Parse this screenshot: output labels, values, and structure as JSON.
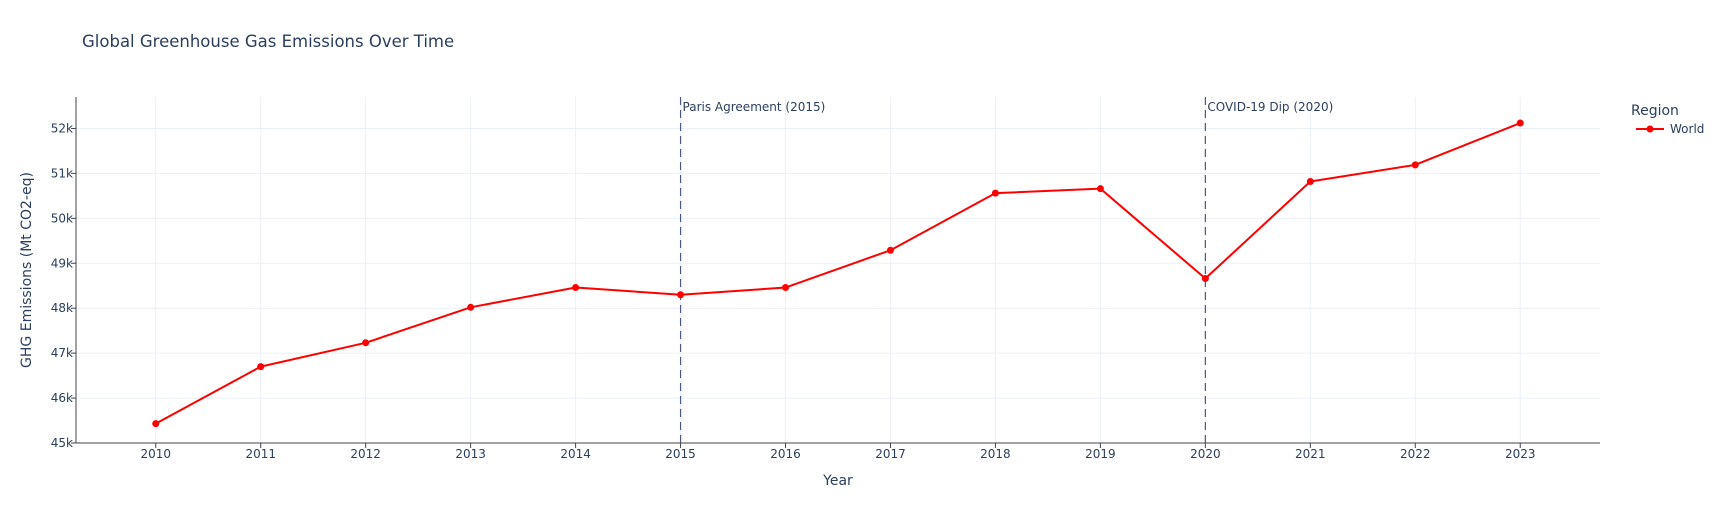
{
  "chart_data": {
    "type": "line",
    "title": "Global Greenhouse Gas Emissions Over Time",
    "xlabel": "Year",
    "ylabel": "GHG Emissions (Mt CO2-eq)",
    "x": [
      2010,
      2011,
      2012,
      2013,
      2014,
      2015,
      2016,
      2017,
      2018,
      2019,
      2020,
      2021,
      2022,
      2023
    ],
    "xlim": [
      2009.24,
      2023.76
    ],
    "ylim": [
      45000,
      52700
    ],
    "x_ticks": [
      2010,
      2011,
      2012,
      2013,
      2014,
      2015,
      2016,
      2017,
      2018,
      2019,
      2020,
      2021,
      2022,
      2023
    ],
    "y_ticks": [
      45000,
      46000,
      47000,
      48000,
      49000,
      50000,
      51000,
      52000
    ],
    "y_tick_labels": [
      "45k",
      "46k",
      "47k",
      "48k",
      "49k",
      "50k",
      "51k",
      "52k"
    ],
    "grid": true,
    "legend": {
      "title": "Region",
      "placement": "top-right"
    },
    "series": [
      {
        "name": "World",
        "color": "#ff0000",
        "values": [
          45430,
          46700,
          47230,
          48020,
          48460,
          48300,
          48460,
          49290,
          50560,
          50660,
          48660,
          50820,
          51190,
          52120
        ]
      }
    ],
    "annotations": [
      {
        "x": 2015,
        "text": "Paris Agreement (2015)"
      },
      {
        "x": 2020,
        "text": "COVID-19 Dip (2020)"
      }
    ]
  }
}
